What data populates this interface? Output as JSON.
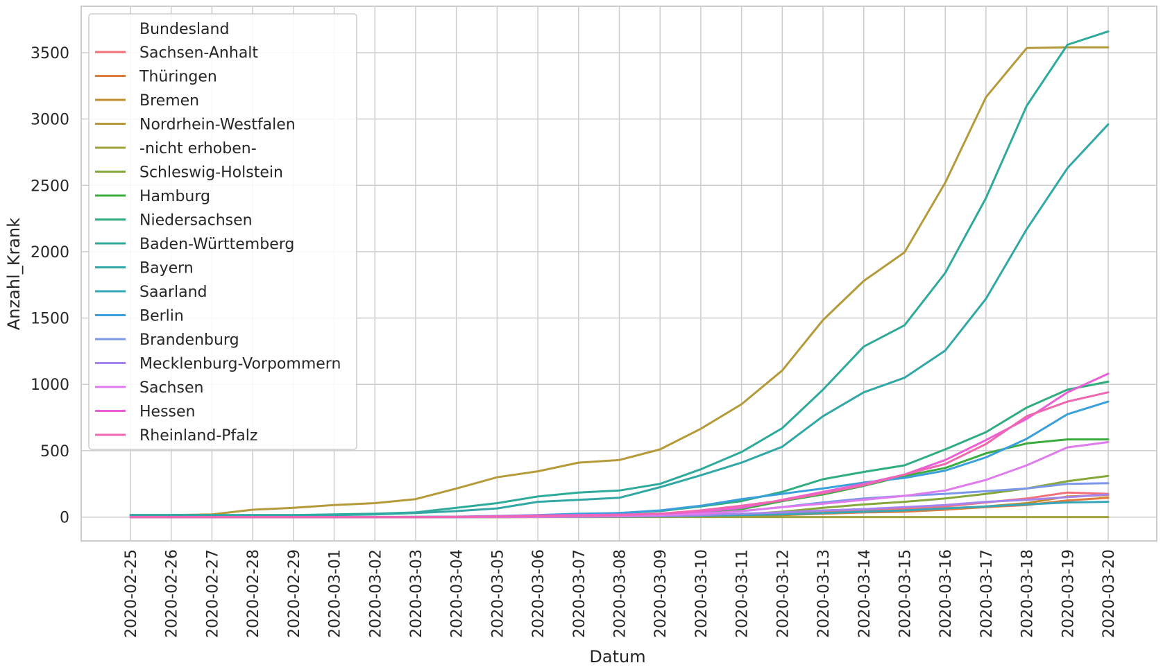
{
  "chart_data": {
    "type": "line",
    "xlabel": "Datum",
    "ylabel": "Anzahl_Krank",
    "x": [
      "2020-02-25",
      "2020-02-26",
      "2020-02-27",
      "2020-02-28",
      "2020-02-29",
      "2020-03-01",
      "2020-03-02",
      "2020-03-03",
      "2020-03-04",
      "2020-03-05",
      "2020-03-06",
      "2020-03-07",
      "2020-03-08",
      "2020-03-09",
      "2020-03-10",
      "2020-03-11",
      "2020-03-12",
      "2020-03-13",
      "2020-03-14",
      "2020-03-15",
      "2020-03-16",
      "2020-03-17",
      "2020-03-18",
      "2020-03-19",
      "2020-03-20"
    ],
    "ylim": [
      -180,
      3850
    ],
    "yticks": [
      0,
      500,
      1000,
      1500,
      2000,
      2500,
      3000,
      3500
    ],
    "grid": true,
    "legend": {
      "title": "Bundesland",
      "position": "top-left"
    },
    "series": [
      {
        "name": "Sachsen-Anhalt",
        "color": "#f1707a",
        "values": [
          0,
          0,
          0,
          0,
          0,
          0,
          0,
          0,
          0,
          0,
          1,
          2,
          3,
          5,
          10,
          15,
          25,
          40,
          55,
          65,
          80,
          110,
          140,
          185,
          175
        ]
      },
      {
        "name": "Thüringen",
        "color": "#e07b3c",
        "values": [
          0,
          0,
          0,
          0,
          0,
          0,
          0,
          0,
          1,
          1,
          1,
          2,
          2,
          3,
          5,
          8,
          15,
          25,
          35,
          40,
          55,
          75,
          90,
          125,
          145
        ]
      },
      {
        "name": "Bremen",
        "color": "#c48b2c",
        "values": [
          0,
          0,
          0,
          0,
          0,
          0,
          0,
          0,
          0,
          0,
          0,
          1,
          1,
          2,
          3,
          5,
          15,
          30,
          40,
          50,
          65,
          80,
          105,
          155,
          165
        ]
      },
      {
        "name": "Nordrhein-Westfalen",
        "color": "#b59a3a",
        "values": [
          15,
          15,
          20,
          55,
          70,
          90,
          105,
          135,
          215,
          300,
          345,
          410,
          430,
          510,
          665,
          850,
          1105,
          1485,
          1780,
          1995,
          2520,
          3165,
          3535,
          3540,
          3540
        ]
      },
      {
        "name": "-nicht erhoben-",
        "color": "#9ea33a",
        "values": [
          0,
          0,
          0,
          0,
          0,
          0,
          0,
          0,
          0,
          0,
          0,
          0,
          0,
          0,
          0,
          0,
          0,
          0,
          0,
          0,
          0,
          0,
          0,
          0,
          0
        ]
      },
      {
        "name": "Schleswig-Holstein",
        "color": "#86a73a",
        "values": [
          0,
          0,
          0,
          0,
          0,
          0,
          0,
          0,
          0,
          0,
          1,
          2,
          3,
          6,
          10,
          20,
          40,
          70,
          95,
          115,
          140,
          175,
          215,
          270,
          310
        ]
      },
      {
        "name": "Hamburg",
        "color": "#3bab3f",
        "values": [
          1,
          1,
          1,
          1,
          1,
          1,
          1,
          1,
          2,
          3,
          4,
          6,
          8,
          12,
          30,
          60,
          120,
          170,
          235,
          310,
          370,
          480,
          555,
          585,
          585
        ]
      },
      {
        "name": "Niedersachsen",
        "color": "#2fad7f",
        "values": [
          0,
          0,
          0,
          0,
          0,
          0,
          0,
          1,
          2,
          5,
          10,
          20,
          30,
          45,
          80,
          120,
          190,
          285,
          340,
          390,
          510,
          640,
          825,
          960,
          1020
        ]
      },
      {
        "name": "Baden-Württemberg",
        "color": "#2eaa9a",
        "values": [
          15,
          15,
          15,
          15,
          15,
          20,
          25,
          35,
          70,
          105,
          155,
          185,
          200,
          250,
          360,
          490,
          670,
          960,
          1285,
          1445,
          1840,
          2405,
          3100,
          3560,
          3660
        ]
      },
      {
        "name": "Bayern",
        "color": "#31a8a6",
        "values": [
          15,
          15,
          15,
          15,
          15,
          15,
          20,
          30,
          45,
          65,
          115,
          130,
          145,
          225,
          315,
          410,
          530,
          760,
          940,
          1050,
          1255,
          1645,
          2170,
          2630,
          2960
        ]
      },
      {
        "name": "Saarland",
        "color": "#36a6b9",
        "values": [
          0,
          0,
          0,
          0,
          0,
          0,
          0,
          0,
          0,
          1,
          1,
          2,
          3,
          5,
          10,
          15,
          20,
          30,
          40,
          50,
          65,
          80,
          95,
          110,
          115
        ]
      },
      {
        "name": "Berlin",
        "color": "#3aa0dc",
        "values": [
          0,
          0,
          0,
          0,
          0,
          0,
          0,
          1,
          3,
          8,
          15,
          25,
          30,
          50,
          85,
          135,
          175,
          215,
          260,
          295,
          350,
          450,
          590,
          775,
          870
        ]
      },
      {
        "name": "Brandenburg",
        "color": "#7b97ea",
        "values": [
          0,
          0,
          0,
          0,
          0,
          0,
          0,
          0,
          0,
          0,
          1,
          2,
          5,
          10,
          25,
          45,
          75,
          110,
          140,
          160,
          175,
          195,
          215,
          250,
          255
        ]
      },
      {
        "name": "Mecklenburg-Vorpommern",
        "color": "#a584ee",
        "values": [
          0,
          0,
          0,
          0,
          0,
          0,
          0,
          0,
          0,
          1,
          2,
          3,
          5,
          8,
          15,
          25,
          35,
          50,
          60,
          75,
          90,
          115,
          130,
          150,
          170
        ]
      },
      {
        "name": "Sachsen",
        "color": "#e07bee",
        "values": [
          0,
          0,
          0,
          0,
          0,
          0,
          0,
          0,
          0,
          1,
          2,
          5,
          10,
          15,
          25,
          45,
          75,
          100,
          130,
          160,
          200,
          280,
          390,
          525,
          565
        ]
      },
      {
        "name": "Hessen",
        "color": "#ea5fd8",
        "values": [
          0,
          0,
          0,
          0,
          0,
          0,
          0,
          0,
          2,
          6,
          12,
          15,
          18,
          25,
          40,
          70,
          130,
          190,
          250,
          320,
          430,
          580,
          740,
          940,
          1080
        ]
      },
      {
        "name": "Rheinland-Pfalz",
        "color": "#ef66b1",
        "values": [
          0,
          0,
          0,
          0,
          0,
          0,
          0,
          0,
          1,
          3,
          6,
          10,
          15,
          25,
          50,
          85,
          125,
          180,
          240,
          320,
          400,
          550,
          760,
          870,
          940
        ]
      }
    ]
  }
}
